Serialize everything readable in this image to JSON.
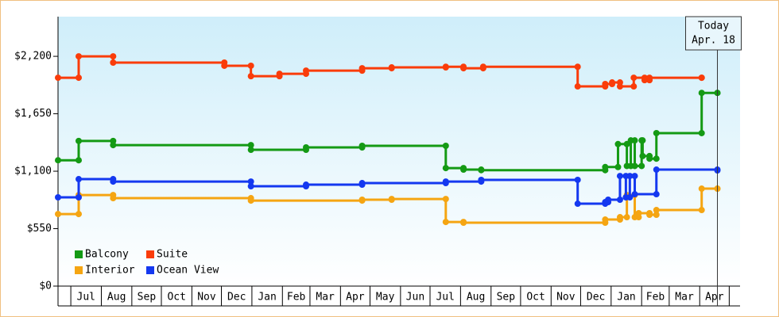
{
  "chart_data": {
    "type": "step-line",
    "xlim": [
      0,
      693
    ],
    "ylim": [
      0,
      2580
    ],
    "yticks": [
      {
        "value": 0,
        "label": "$0"
      },
      {
        "value": 550,
        "label": "$550"
      },
      {
        "value": 1100,
        "label": "$1,100"
      },
      {
        "value": 1650,
        "label": "$1,650"
      },
      {
        "value": 2200,
        "label": "$2,200"
      }
    ],
    "xticks": [
      {
        "value": 13,
        "label": "Jul"
      },
      {
        "value": 44,
        "label": "Aug"
      },
      {
        "value": 75,
        "label": "Sep"
      },
      {
        "value": 105,
        "label": "Oct"
      },
      {
        "value": 136,
        "label": "Nov"
      },
      {
        "value": 166,
        "label": "Dec"
      },
      {
        "value": 197,
        "label": "Jan"
      },
      {
        "value": 228,
        "label": "Feb"
      },
      {
        "value": 256,
        "label": "Mar"
      },
      {
        "value": 287,
        "label": "Apr"
      },
      {
        "value": 317,
        "label": "May"
      },
      {
        "value": 348,
        "label": "Jun"
      },
      {
        "value": 378,
        "label": "Jul"
      },
      {
        "value": 409,
        "label": "Aug"
      },
      {
        "value": 440,
        "label": "Sep"
      },
      {
        "value": 470,
        "label": "Oct"
      },
      {
        "value": 501,
        "label": "Nov"
      },
      {
        "value": 531,
        "label": "Dec"
      },
      {
        "value": 562,
        "label": "Jan"
      },
      {
        "value": 593,
        "label": "Feb"
      },
      {
        "value": 621,
        "label": "Mar"
      },
      {
        "value": 652,
        "label": "Apr"
      },
      {
        "value": 682,
        "label": null
      }
    ],
    "grid": false,
    "legend": "lower left",
    "annotation": {
      "lines": [
        "Today",
        "Apr. 18"
      ],
      "x": 670
    },
    "series": [
      {
        "name": "Balcony",
        "color": "#149a14",
        "x": [
          0,
          21,
          56,
          196,
          252,
          309,
          394,
          412,
          430,
          556,
          569,
          578,
          582,
          586,
          593,
          594,
          601,
          608,
          654,
          670
        ],
        "values": [
          1205,
          1390,
          1350,
          1305,
          1328,
          1343,
          1130,
          1115,
          1110,
          1140,
          1360,
          1150,
          1395,
          1150,
          1395,
          1245,
          1220,
          1465,
          1850,
          1850
        ]
      },
      {
        "name": "Suite",
        "color": "#fa3c0a",
        "x": [
          0,
          21,
          56,
          169,
          196,
          225,
          252,
          309,
          339,
          394,
          412,
          432,
          528,
          556,
          563,
          571,
          585,
          596,
          601,
          654
        ],
        "values": [
          1995,
          2200,
          2140,
          2110,
          2010,
          2033,
          2063,
          2086,
          2094,
          2100,
          2086,
          2100,
          1912,
          1935,
          1950,
          1912,
          1995,
          1972,
          1995,
          1995
        ]
      },
      {
        "name": "Interior",
        "color": "#f5a512",
        "x": [
          0,
          21,
          56,
          196,
          309,
          339,
          394,
          412,
          556,
          571,
          578,
          586,
          590,
          601,
          608,
          654,
          670
        ],
        "values": [
          690,
          872,
          842,
          819,
          827,
          834,
          614,
          607,
          637,
          660,
          872,
          660,
          698,
          683,
          728,
          933,
          933
        ]
      },
      {
        "name": "Ocean View",
        "color": "#1438f0",
        "x": [
          0,
          21,
          56,
          196,
          252,
          309,
          394,
          430,
          528,
          556,
          559,
          571,
          577,
          581,
          586,
          608,
          670
        ],
        "values": [
          850,
          1024,
          1001,
          956,
          971,
          986,
          1001,
          1017,
          789,
          804,
          827,
          1054,
          850,
          1054,
          880,
          1115,
          1108
        ]
      }
    ]
  }
}
